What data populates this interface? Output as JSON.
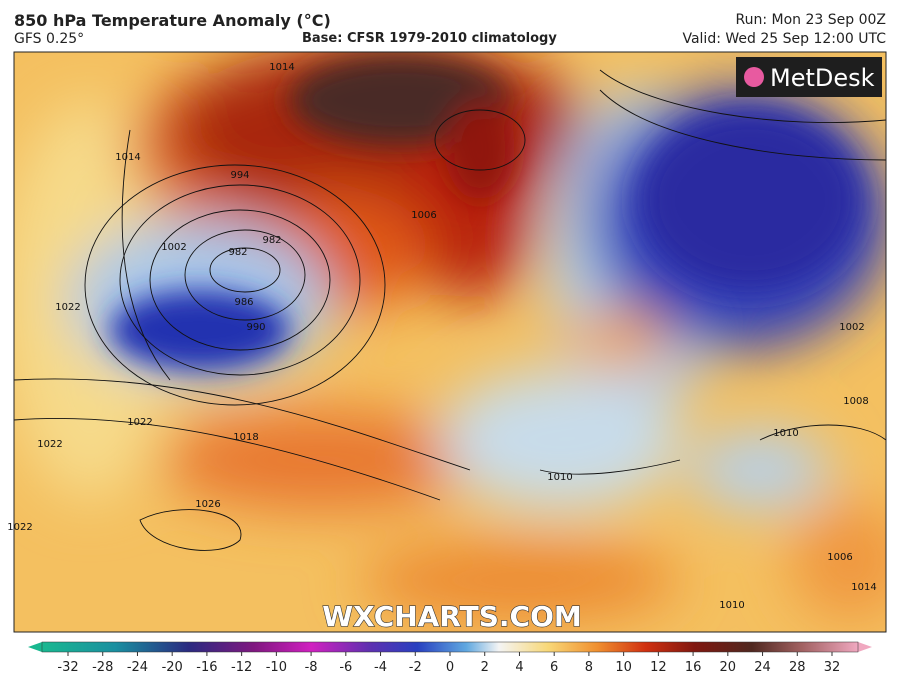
{
  "header": {
    "title": "850 hPa Temperature Anomaly (°C)",
    "model": "GFS 0.25°",
    "base": "Base: CFSR 1979-2010 climatology",
    "run": "Run: Mon 23 Sep 00Z",
    "valid": "Valid: Wed 25 Sep 12:00 UTC"
  },
  "map": {
    "logo": "MetDesk",
    "watermark": "WXCHARTS.COM",
    "isobar_labels": [
      "1014",
      "1014",
      "994",
      "982",
      "982",
      "986",
      "990",
      "1002",
      "1006",
      "1022",
      "1022",
      "1018",
      "1022",
      "1026",
      "1010",
      "1010",
      "1022",
      "1008",
      "1014",
      "1010",
      "1002",
      "1006"
    ]
  },
  "colorbar": {
    "ticks": [
      -32,
      -28,
      -24,
      -20,
      -16,
      -12,
      -10,
      -8,
      -6,
      -4,
      -2,
      0,
      2,
      4,
      6,
      8,
      10,
      12,
      16,
      20,
      24,
      28,
      32
    ]
  }
}
